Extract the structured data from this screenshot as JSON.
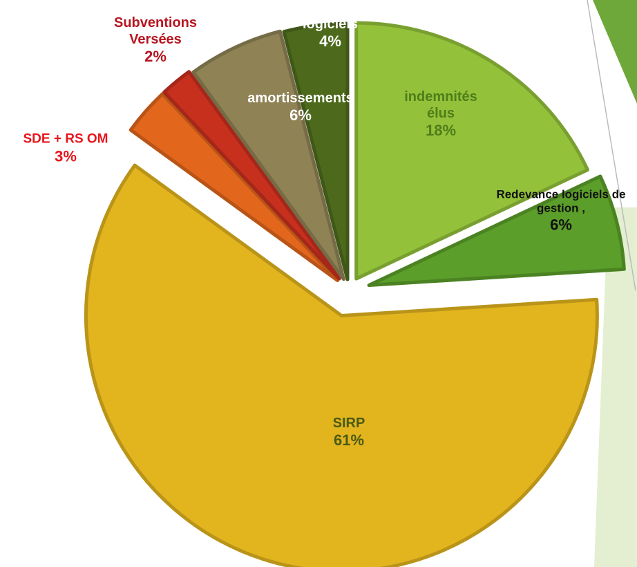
{
  "chart_data": {
    "type": "pie",
    "categories": [
      "indemnités élus",
      "Redevance logiciels de gestion ,",
      "SIRP",
      "SDE + RS OM",
      "Subventions Versées",
      "amortissements",
      "logiciels"
    ],
    "values": [
      18,
      6,
      61,
      3,
      2,
      6,
      4
    ],
    "value_labels": [
      "18%",
      "6%",
      "61%",
      "3%",
      "2%",
      "6%",
      "4%"
    ],
    "colors": [
      "#93c23a",
      "#5b9e2a",
      "#e2b51f",
      "#e2661c",
      "#c8301e",
      "#8f8255",
      "#4d6a1c"
    ],
    "label_colors": [
      "#4f7d1a",
      "#111111",
      "#4a5a14",
      "#e8141c",
      "#b81420",
      "#ffffff",
      "#ffffff"
    ]
  }
}
